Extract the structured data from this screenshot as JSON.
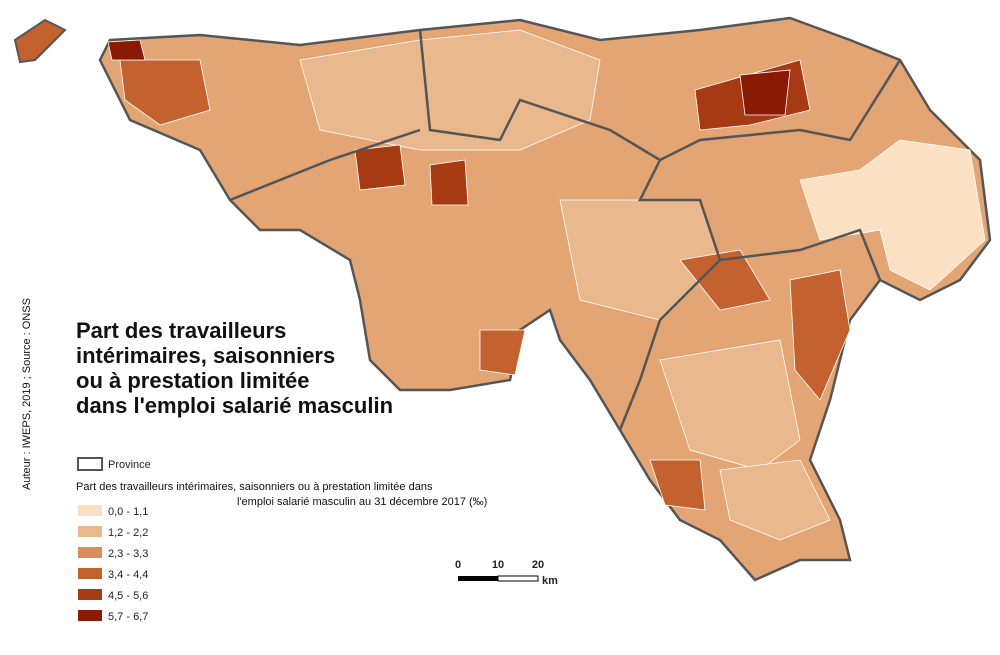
{
  "title": {
    "lines": [
      "Part des travailleurs",
      "intérimaires, saisonniers",
      "ou à prestation limitée",
      "dans l'emploi salarié masculin"
    ]
  },
  "source": "Auteur : IWEPS, 2019 ; Source : ONSS",
  "legend": {
    "province": "Province",
    "title_lines": [
      "Part des travailleurs intérimaires, saisonniers ou à prestation limitée dans",
      "l'emploi salarié masculin au 31 décembre 2017 (‰)"
    ],
    "classes": [
      {
        "label": "0,0 - 1,1",
        "color": "#fbe0c3"
      },
      {
        "label": "1,2 - 2,2",
        "color": "#eab88d"
      },
      {
        "label": "2,3 - 3,3",
        "color": "#d98e5c"
      },
      {
        "label": "3,4 - 4,4",
        "color": "#c4622f"
      },
      {
        "label": "4,5 - 5,6",
        "color": "#a63a12"
      },
      {
        "label": "5,7 - 6,7",
        "color": "#8b1a05"
      }
    ]
  },
  "scale": {
    "ticks": [
      0,
      10,
      20
    ],
    "unit": "km"
  }
}
